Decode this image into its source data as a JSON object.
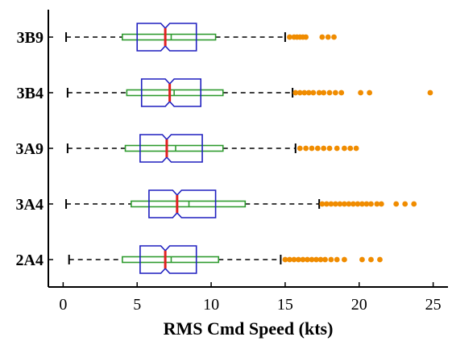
{
  "chart_data": {
    "type": "boxplot",
    "orientation": "horizontal",
    "title": "",
    "xlabel": "RMS Cmd Speed (kts)",
    "ylabel": "",
    "xlim": [
      -1,
      26
    ],
    "xticks": [
      0,
      5,
      10,
      15,
      20,
      25
    ],
    "grid": false,
    "colors": {
      "notched_box": "#1f1fbf",
      "inner_box": "#2e9b2e",
      "median": "#e02020",
      "whisker": "#000000",
      "outlier": "#f08c00"
    },
    "categories": [
      "3B9",
      "3B4",
      "3A9",
      "3A4",
      "2A4"
    ],
    "series": [
      {
        "category": "3B9",
        "whisker_low": 0.2,
        "whisker_high": 15.0,
        "q1": 5.0,
        "median": 6.9,
        "q3": 9.0,
        "notch_low": 6.6,
        "notch_high": 7.2,
        "inner_q1": 4.0,
        "inner_median": 7.3,
        "inner_q3": 10.3,
        "outliers": [
          15.3,
          15.6,
          15.8,
          16.0,
          16.2,
          16.4,
          17.5,
          17.9,
          18.3
        ]
      },
      {
        "category": "3B4",
        "whisker_low": 0.3,
        "whisker_high": 15.5,
        "q1": 5.3,
        "median": 7.2,
        "q3": 9.3,
        "notch_low": 6.9,
        "notch_high": 7.5,
        "inner_q1": 4.3,
        "inner_median": 7.5,
        "inner_q3": 10.8,
        "outliers": [
          15.7,
          16.0,
          16.3,
          16.6,
          16.9,
          17.3,
          17.6,
          18.0,
          18.4,
          18.8,
          20.1,
          20.7,
          24.8
        ]
      },
      {
        "category": "3A9",
        "whisker_low": 0.3,
        "whisker_high": 15.7,
        "q1": 5.2,
        "median": 7.0,
        "q3": 9.4,
        "notch_low": 6.7,
        "notch_high": 7.3,
        "inner_q1": 4.2,
        "inner_median": 7.6,
        "inner_q3": 10.8,
        "outliers": [
          16.0,
          16.4,
          16.8,
          17.2,
          17.6,
          18.0,
          18.5,
          19.0,
          19.4,
          19.8
        ]
      },
      {
        "category": "3A4",
        "whisker_low": 0.2,
        "whisker_high": 17.3,
        "q1": 5.8,
        "median": 7.7,
        "q3": 10.3,
        "notch_low": 7.4,
        "notch_high": 8.0,
        "inner_q1": 4.6,
        "inner_median": 8.5,
        "inner_q3": 12.3,
        "outliers": [
          17.5,
          17.8,
          18.1,
          18.4,
          18.7,
          19.0,
          19.3,
          19.6,
          19.9,
          20.2,
          20.5,
          20.8,
          21.2,
          21.5,
          22.5,
          23.1,
          23.7
        ]
      },
      {
        "category": "2A4",
        "whisker_low": 0.4,
        "whisker_high": 14.7,
        "q1": 5.2,
        "median": 6.9,
        "q3": 9.0,
        "notch_low": 6.6,
        "notch_high": 7.2,
        "inner_q1": 4.0,
        "inner_median": 7.3,
        "inner_q3": 10.5,
        "outliers": [
          15.0,
          15.3,
          15.6,
          15.9,
          16.2,
          16.5,
          16.8,
          17.1,
          17.4,
          17.7,
          18.1,
          18.5,
          19.0,
          20.2,
          20.8,
          21.4
        ]
      }
    ]
  }
}
